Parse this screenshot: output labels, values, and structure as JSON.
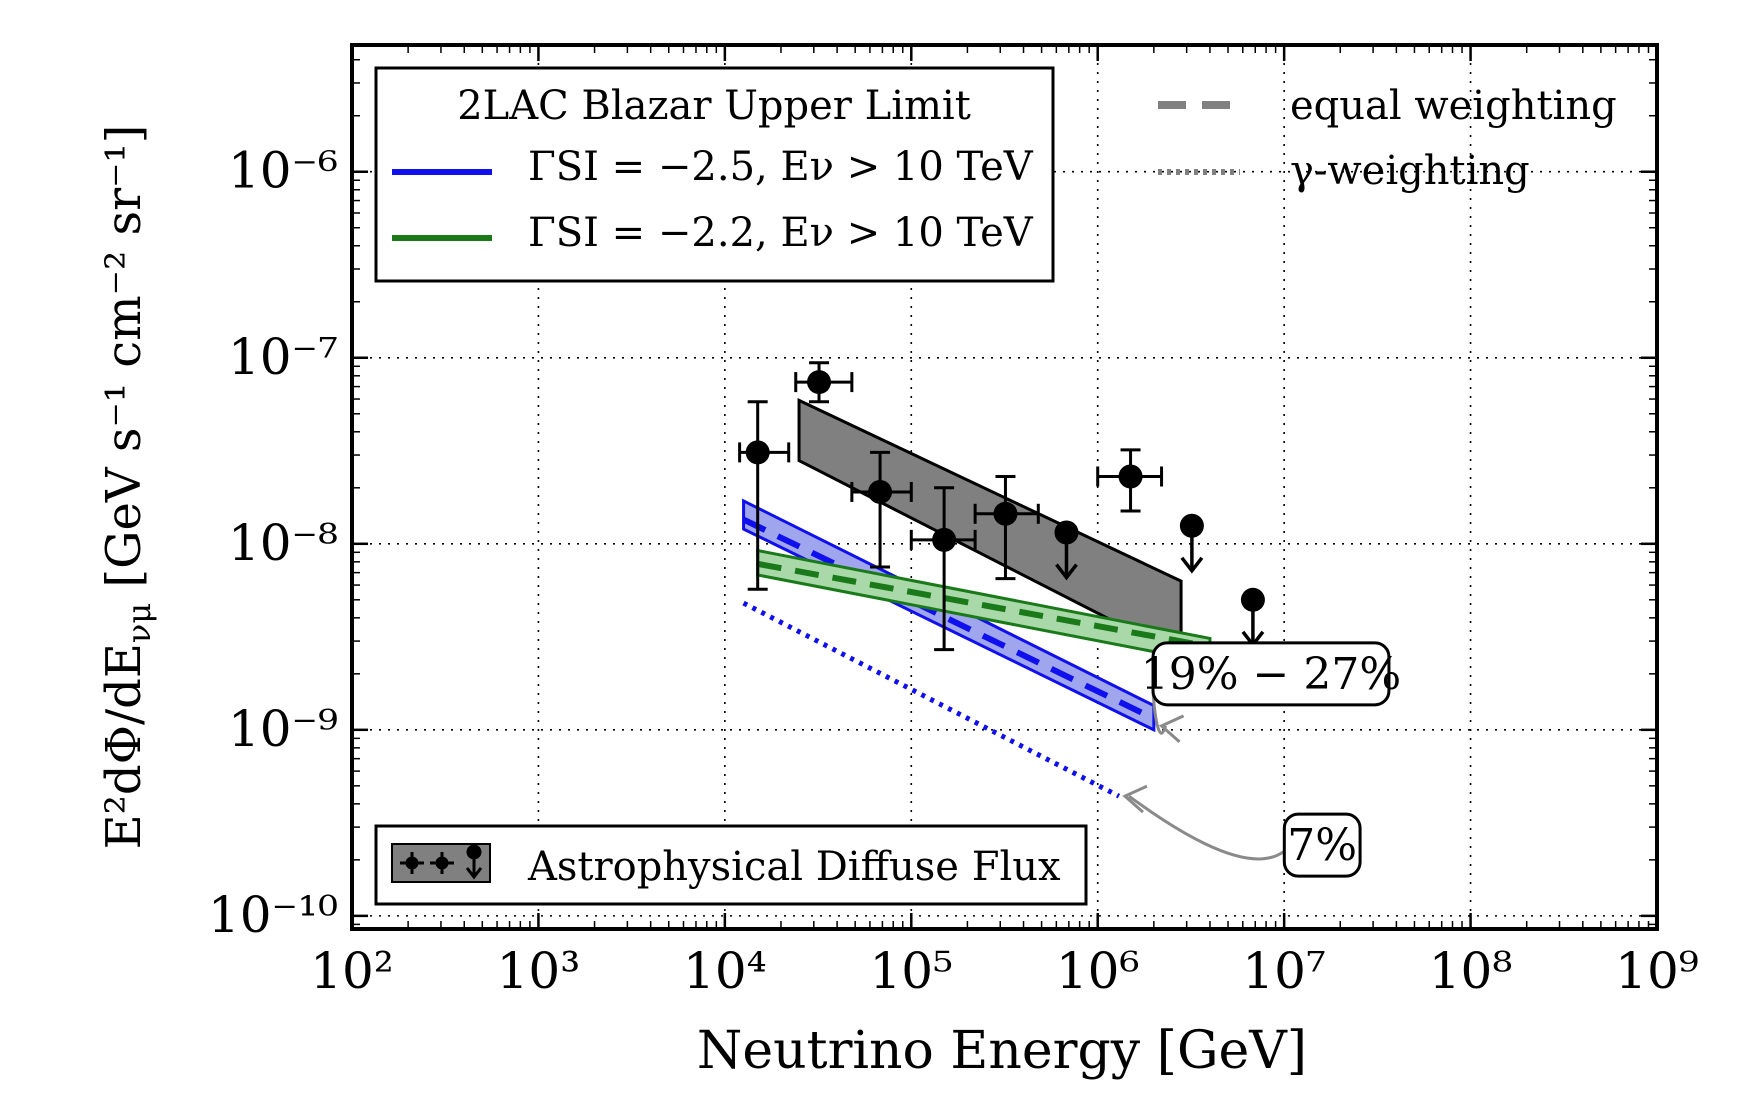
{
  "chart_data": {
    "type": "line",
    "xlabel": "Neutrino Energy [GeV]",
    "ylabel_parts": {
      "lhs": "E²dΦ/dE",
      "lhs_sub": "νμ",
      "units": "[GeV s⁻¹ cm⁻² sr⁻¹]"
    },
    "x_scale": "log",
    "y_scale": "log",
    "xlim": [
      100,
      1000000000
    ],
    "ylim": [
      8.5e-11,
      4.8e-06
    ],
    "grid": true,
    "x_ticks": [
      {
        "value": 100,
        "label": "10²"
      },
      {
        "value": 1000,
        "label": "10³"
      },
      {
        "value": 10000,
        "label": "10⁴"
      },
      {
        "value": 100000,
        "label": "10⁵"
      },
      {
        "value": 1000000,
        "label": "10⁶"
      },
      {
        "value": 10000000,
        "label": "10⁷"
      },
      {
        "value": 100000000,
        "label": "10⁸"
      },
      {
        "value": 1000000000,
        "label": "10⁹"
      }
    ],
    "y_ticks": [
      {
        "value": 1e-10,
        "label": "10⁻¹⁰"
      },
      {
        "value": 1e-09,
        "label": "10⁻⁹"
      },
      {
        "value": 1e-08,
        "label": "10⁻⁸"
      },
      {
        "value": 1e-07,
        "label": "10⁻⁷"
      },
      {
        "value": 1e-06,
        "label": "10⁻⁶"
      }
    ],
    "legend_main": {
      "position": "top-left",
      "title": "2LAC Blazar Upper Limit",
      "entries": [
        {
          "label": "ΓSI = −2.5, Eν > 10 TeV",
          "color": "#1010ee"
        },
        {
          "label": "ΓSI = −2.2, Eν > 10 TeV",
          "color": "#1a7a1a"
        }
      ]
    },
    "legend_style": {
      "position": "top-right",
      "entries": [
        {
          "label": "equal weighting",
          "style": "dashed",
          "color": "#808080"
        },
        {
          "label": "γ-weighting",
          "style": "dotted",
          "color": "#808080"
        }
      ]
    },
    "legend_diffuse": {
      "position": "bottom-left",
      "label": "Astrophysical Diffuse Flux"
    },
    "series": [
      {
        "name": "ΓSI = −2.5, Eν > 10 TeV",
        "color": "#1010ee",
        "fill": "#9fa6ee",
        "equal_weighting": {
          "x": [
            12600,
            2000000
          ],
          "y": [
            1.35e-08,
            1.15e-09
          ]
        },
        "band": {
          "x": [
            12600,
            2000000
          ],
          "upper": [
            1.7e-08,
            1.35e-09
          ],
          "lower": [
            1.2e-08,
            1e-09
          ]
        },
        "gamma_weighting": {
          "x": [
            12600,
            1300000
          ],
          "y": [
            4.8e-09,
            4.4e-10
          ]
        }
      },
      {
        "name": "ΓSI = −2.2, Eν > 10 TeV",
        "color": "#1a7a1a",
        "fill": "#a9d8a9",
        "equal_weighting": {
          "x": [
            15000,
            4000000
          ],
          "y": [
            7.8e-09,
            2.8e-09
          ]
        },
        "band": {
          "x": [
            15000,
            4000000
          ],
          "upper": [
            9.2e-09,
            3.1e-09
          ],
          "lower": [
            6.8e-09,
            2.3e-09
          ]
        }
      }
    ],
    "diffuse_band": {
      "fill": "#808080",
      "x": [
        25000,
        2800000
      ],
      "upper": [
        5.9e-08,
        6.3e-09
      ],
      "lower": [
        2.8e-08,
        2.5e-09
      ]
    },
    "diffuse_points": [
      {
        "x": 15000,
        "y": 3.1e-08,
        "x_err": [
          12000,
          22000
        ],
        "y_err": [
          5.7e-09,
          5.8e-08
        ]
      },
      {
        "x": 32000,
        "y": 7.4e-08,
        "x_err": [
          24000,
          48000
        ],
        "y_err": [
          5.8e-08,
          9.4e-08
        ]
      },
      {
        "x": 68000,
        "y": 1.9e-08,
        "x_err": [
          48000,
          100000
        ],
        "y_err": [
          7.5e-09,
          3.1e-08
        ]
      },
      {
        "x": 150000,
        "y": 1.05e-08,
        "x_err": [
          100000,
          220000
        ],
        "y_err": [
          2.7e-09,
          2e-08
        ]
      },
      {
        "x": 320000,
        "y": 1.45e-08,
        "x_err": [
          220000,
          480000
        ],
        "y_err": [
          6.5e-09,
          2.3e-08
        ]
      },
      {
        "x": 680000,
        "y": 1.15e-08,
        "upper_limit": true
      },
      {
        "x": 1500000,
        "y": 2.3e-08,
        "x_err": [
          1000000,
          2200000
        ],
        "y_err": [
          1.5e-08,
          3.2e-08
        ]
      },
      {
        "x": 3200000,
        "y": 1.25e-08,
        "upper_limit": true
      },
      {
        "x": 6800000,
        "y": 5e-09,
        "upper_limit": true
      }
    ],
    "annotations": [
      {
        "text": "19% − 27%",
        "text_at": {
          "x": 8500000,
          "y": 2e-09
        },
        "arrow_to": {
          "x": 2200000,
          "y": 1.05e-09
        }
      },
      {
        "text": "7%",
        "text_at": {
          "x": 16000000,
          "y": 2.4e-10
        },
        "arrow_to": {
          "x": 1400000,
          "y": 4.4e-10
        }
      }
    ]
  }
}
